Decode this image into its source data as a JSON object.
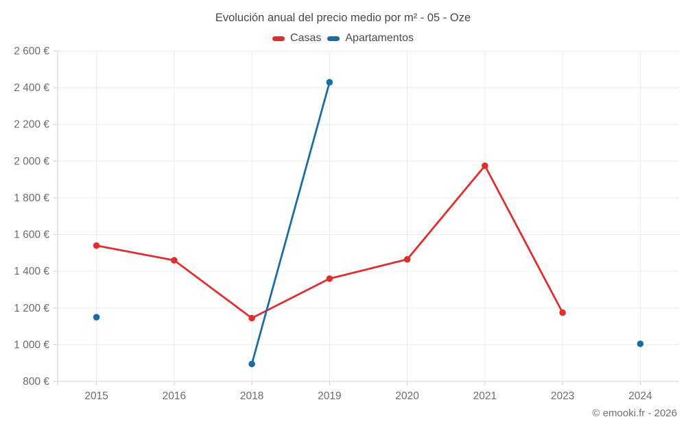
{
  "title": "Evolución anual del precio medio por m² - 05 - Oze",
  "footer": "© emooki.fr - 2026",
  "legend": {
    "items": [
      {
        "label": "Casas",
        "color": "#de2e2e"
      },
      {
        "label": "Apartamentos",
        "color": "#1a6ca3"
      }
    ]
  },
  "chart_data": {
    "type": "line",
    "title": "Evolución anual del precio medio por m² - 05 - Oze",
    "categories": [
      "2015",
      "2016",
      "2018",
      "2019",
      "2020",
      "2021",
      "2023",
      "2024"
    ],
    "series": [
      {
        "name": "Casas",
        "color": "#de2e2e",
        "values": [
          1540,
          1460,
          1145,
          1360,
          1465,
          1975,
          1175,
          null
        ]
      },
      {
        "name": "Apartamentos",
        "color": "#1a6ca3",
        "values": [
          1150,
          null,
          895,
          2430,
          null,
          null,
          null,
          1005
        ]
      }
    ],
    "xlabel": "",
    "ylabel": "",
    "ylim": [
      800,
      2600
    ],
    "ytick_step": 200,
    "yticklabels": [
      "800 €",
      "1 000 €",
      "1 200 €",
      "1 400 €",
      "1 600 €",
      "1 800 €",
      "2 000 €",
      "2 200 €",
      "2 400 €",
      "2 600 €"
    ],
    "grid": true,
    "legend_position": "top-center",
    "currency_suffix": "€"
  },
  "style_colors": {
    "grid": "#ebebeb",
    "axis": "#d2d2d2",
    "tick_label": "#6b6b6b"
  }
}
